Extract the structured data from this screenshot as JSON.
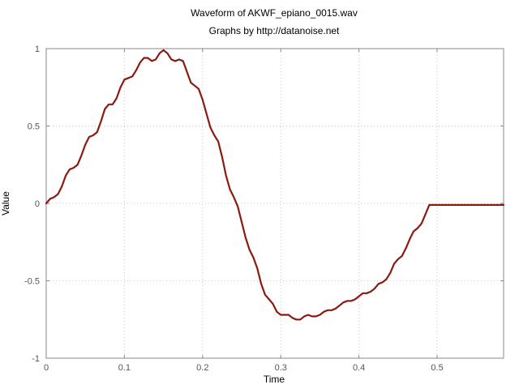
{
  "chart_data": {
    "type": "line",
    "title": "Waveform of AKWF_epiano_0015.wav",
    "subtitle": "Graphs by http://datanoise.net",
    "xlabel": "Time",
    "ylabel": "Value",
    "xlim": [
      0,
      0.585
    ],
    "ylim": [
      -1,
      1
    ],
    "xticks": [
      0,
      0.1,
      0.2,
      0.3,
      0.4,
      0.5
    ],
    "xtick_labels": [
      "0",
      "0.1",
      "0.2",
      "0.3",
      "0.4",
      "0.5"
    ],
    "yticks": [
      1,
      0.5,
      0,
      -0.5,
      -1
    ],
    "ytick_labels": [
      "1",
      "0.5",
      "0",
      "-0.5",
      "-1"
    ],
    "grid": true,
    "legend": "none",
    "series": [
      {
        "color": "#8b1a10",
        "x": [
          0,
          0.005,
          0.01,
          0.015,
          0.02,
          0.025,
          0.03,
          0.035,
          0.04,
          0.045,
          0.05,
          0.055,
          0.06,
          0.065,
          0.07,
          0.075,
          0.08,
          0.085,
          0.09,
          0.095,
          0.1,
          0.105,
          0.11,
          0.115,
          0.12,
          0.125,
          0.13,
          0.135,
          0.14,
          0.145,
          0.15,
          0.155,
          0.16,
          0.165,
          0.17,
          0.175,
          0.18,
          0.185,
          0.19,
          0.195,
          0.2,
          0.205,
          0.21,
          0.215,
          0.22,
          0.225,
          0.23,
          0.235,
          0.24,
          0.245,
          0.25,
          0.255,
          0.26,
          0.265,
          0.27,
          0.275,
          0.28,
          0.285,
          0.29,
          0.295,
          0.3,
          0.305,
          0.31,
          0.315,
          0.32,
          0.325,
          0.33,
          0.335,
          0.34,
          0.345,
          0.35,
          0.355,
          0.36,
          0.365,
          0.37,
          0.375,
          0.38,
          0.385,
          0.39,
          0.395,
          0.4,
          0.405,
          0.41,
          0.415,
          0.42,
          0.425,
          0.43,
          0.435,
          0.44,
          0.445,
          0.45,
          0.455,
          0.46,
          0.465,
          0.47,
          0.475,
          0.48,
          0.485,
          0.49,
          0.495,
          0.5,
          0.505,
          0.51,
          0.515,
          0.52,
          0.525,
          0.53,
          0.535,
          0.54,
          0.545,
          0.55,
          0.555,
          0.56,
          0.565,
          0.57,
          0.575,
          0.58,
          0.585
        ],
        "y": [
          0,
          0.03,
          0.04,
          0.06,
          0.11,
          0.18,
          0.22,
          0.23,
          0.25,
          0.31,
          0.38,
          0.43,
          0.44,
          0.46,
          0.53,
          0.61,
          0.64,
          0.64,
          0.68,
          0.75,
          0.8,
          0.81,
          0.82,
          0.86,
          0.91,
          0.94,
          0.94,
          0.92,
          0.93,
          0.97,
          0.99,
          0.97,
          0.93,
          0.92,
          0.93,
          0.92,
          0.85,
          0.78,
          0.76,
          0.74,
          0.67,
          0.58,
          0.49,
          0.44,
          0.4,
          0.3,
          0.18,
          0.09,
          0.04,
          -0.02,
          -0.12,
          -0.22,
          -0.3,
          -0.35,
          -0.42,
          -0.52,
          -0.59,
          -0.62,
          -0.65,
          -0.7,
          -0.72,
          -0.72,
          -0.72,
          -0.74,
          -0.75,
          -0.75,
          -0.73,
          -0.72,
          -0.73,
          -0.73,
          -0.72,
          -0.7,
          -0.69,
          -0.69,
          -0.68,
          -0.66,
          -0.64,
          -0.63,
          -0.63,
          -0.62,
          -0.6,
          -0.58,
          -0.58,
          -0.57,
          -0.55,
          -0.52,
          -0.51,
          -0.49,
          -0.45,
          -0.39,
          -0.36,
          -0.34,
          -0.29,
          -0.23,
          -0.18,
          -0.16,
          -0.13,
          -0.07,
          -0.01,
          -0.01,
          -0.01,
          -0.01,
          -0.01,
          -0.01,
          -0.01,
          -0.01,
          -0.01,
          -0.01,
          -0.01,
          -0.01,
          -0.01,
          -0.01,
          -0.01,
          -0.01,
          -0.01,
          -0.01,
          -0.01,
          -0.01
        ]
      }
    ]
  }
}
